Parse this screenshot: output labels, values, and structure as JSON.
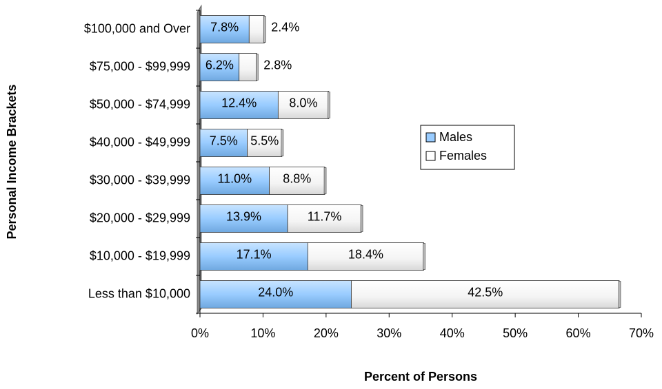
{
  "chart_data": {
    "type": "stacked-bar-horizontal",
    "x_label": "Percent of Persons",
    "y_label": "Personal Income Brackets",
    "categories": [
      "$100,000 and Over",
      "$75,000 - $99,999",
      "$50,000 - $74,999",
      "$40,000 - $49,999",
      "$30,000 - $39,999",
      "$20,000 - $29,999",
      "$10,000 - $19,999",
      "Less than $10,000"
    ],
    "series": [
      {
        "name": "Males",
        "color": "#99ccff",
        "values": [
          7.8,
          6.2,
          12.4,
          7.5,
          11.0,
          13.9,
          17.1,
          24.0
        ],
        "value_labels": [
          "7.8%",
          "6.2%",
          "12.4%",
          "7.5%",
          "11.0%",
          "13.9%",
          "17.1%",
          "24.0%"
        ]
      },
      {
        "name": "Females",
        "color": "#ffffff",
        "values": [
          2.4,
          2.8,
          8.0,
          5.5,
          8.8,
          11.7,
          18.4,
          42.5
        ],
        "value_labels": [
          "2.4%",
          "2.8%",
          "8.0%",
          "5.5%",
          "8.8%",
          "11.7%",
          "18.4%",
          "42.5%"
        ]
      }
    ],
    "xlim": [
      0,
      70
    ],
    "xticks": [
      {
        "value": 0,
        "label": "0%"
      },
      {
        "value": 10,
        "label": "10%"
      },
      {
        "value": 20,
        "label": "20%"
      },
      {
        "value": 30,
        "label": "30%"
      },
      {
        "value": 40,
        "label": "40%"
      },
      {
        "value": 50,
        "label": "50%"
      },
      {
        "value": 60,
        "label": "60%"
      },
      {
        "value": 70,
        "label": "70%"
      }
    ],
    "legend": "right"
  }
}
